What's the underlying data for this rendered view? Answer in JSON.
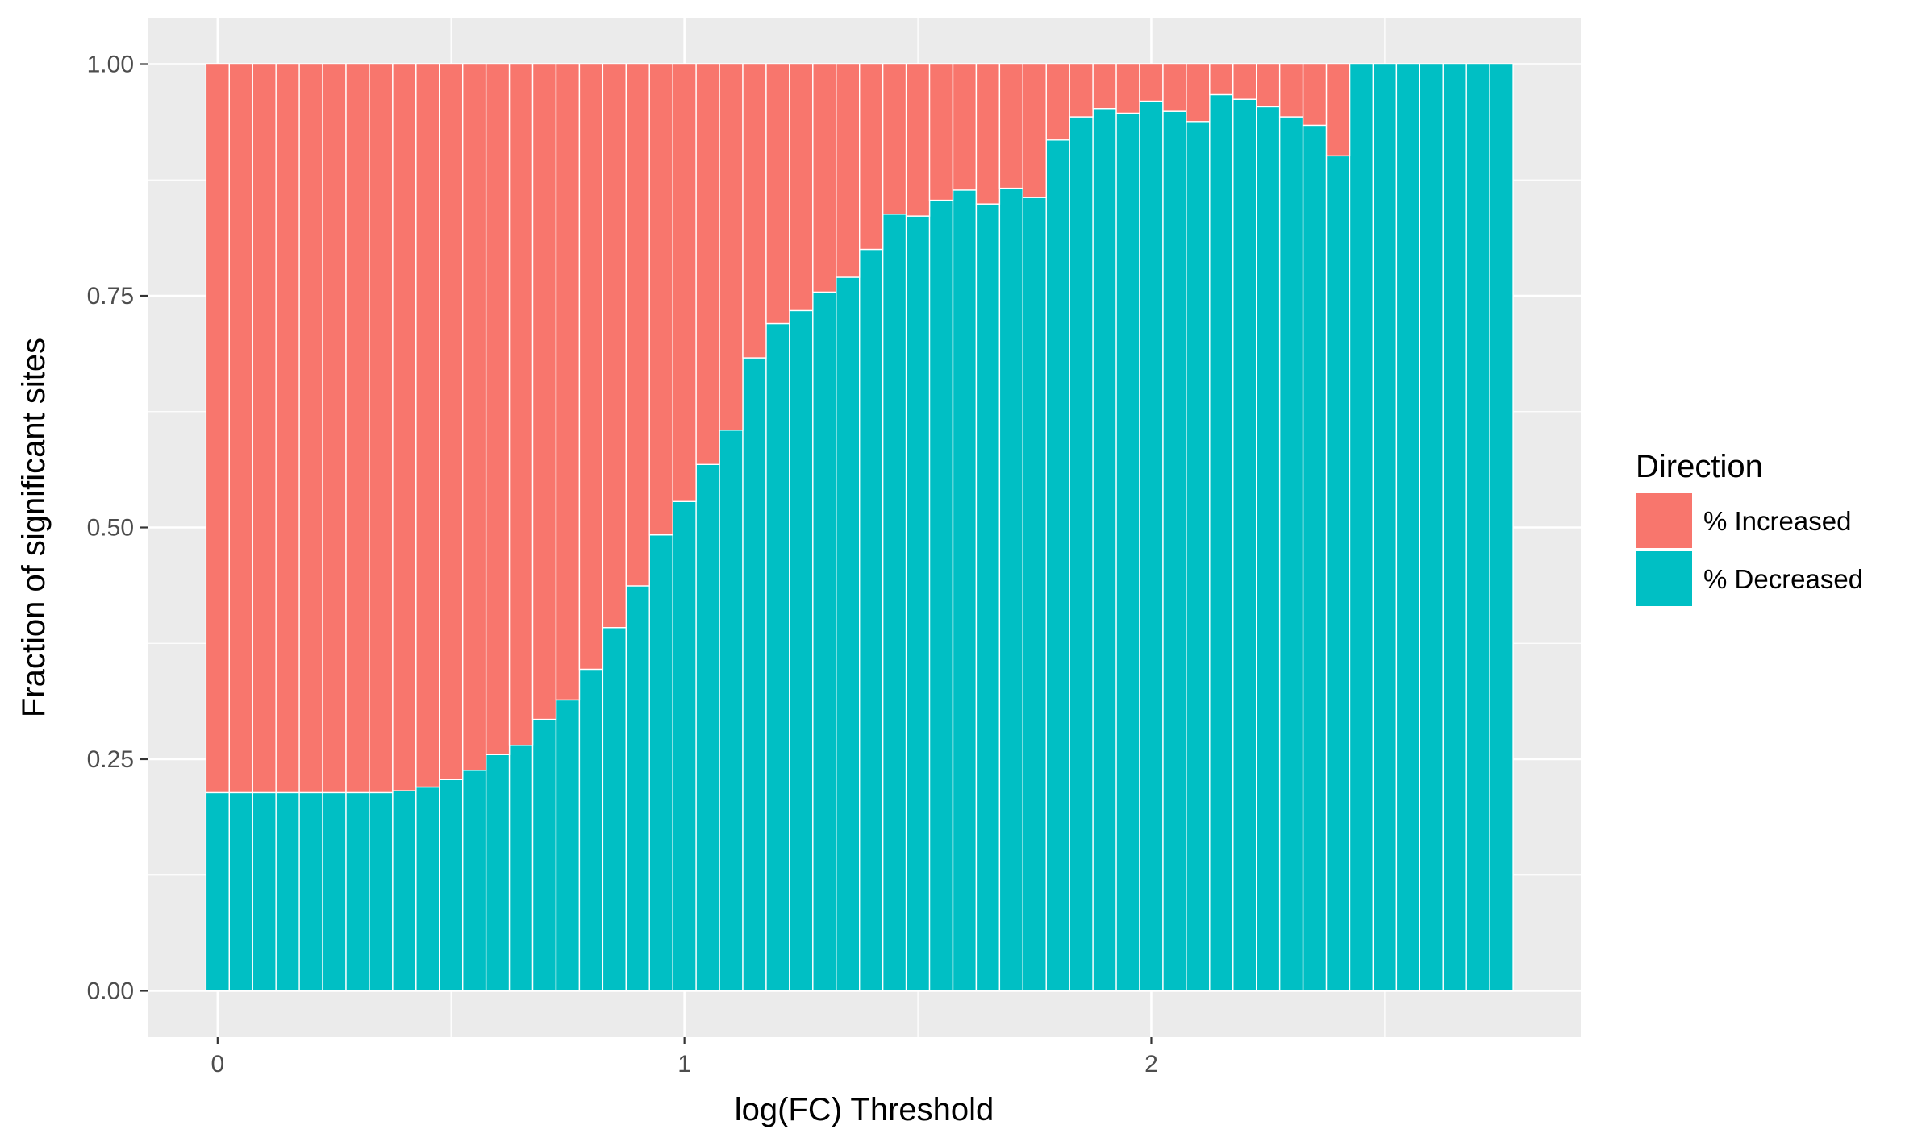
{
  "chart_data": {
    "type": "bar",
    "stacked": true,
    "xlabel": "log(FC) Threshold",
    "ylabel": "Fraction of significant sites",
    "xlim": [
      -0.15,
      2.92
    ],
    "ylim": [
      -0.05,
      1.05
    ],
    "xticks": [
      0,
      1,
      2
    ],
    "xtick_labels": [
      "0",
      "1",
      "2"
    ],
    "yticks": [
      0,
      0.25,
      0.5,
      0.75,
      1
    ],
    "ytick_labels": [
      "0.00",
      "0.25",
      "0.50",
      "0.75",
      "1.00"
    ],
    "bar_width": 0.05,
    "grid": true,
    "legend": {
      "title": "Direction",
      "position": "right",
      "entries": [
        "% Increased",
        "% Decreased"
      ]
    },
    "colors": {
      "% Increased": "#F8766D",
      "% Decreased": "#00BFC4",
      "panel": "#EBEBEB",
      "grid": "#FFFFFF",
      "tick": "#333333"
    },
    "x": [
      0.0,
      0.05,
      0.1,
      0.15,
      0.2,
      0.25,
      0.3,
      0.35,
      0.4,
      0.45,
      0.5,
      0.55,
      0.6,
      0.65,
      0.7,
      0.75,
      0.8,
      0.85,
      0.9,
      0.95,
      1.0,
      1.05,
      1.1,
      1.15,
      1.2,
      1.25,
      1.3,
      1.35,
      1.4,
      1.45,
      1.5,
      1.55,
      1.6,
      1.65,
      1.7,
      1.75,
      1.8,
      1.85,
      1.9,
      1.95,
      2.0,
      2.05,
      2.1,
      2.15,
      2.2,
      2.25,
      2.3,
      2.35,
      2.4,
      2.45,
      2.5,
      2.55,
      2.6,
      2.65,
      2.7,
      2.75
    ],
    "series": [
      {
        "name": "% Decreased",
        "values": [
          0.214,
          0.214,
          0.214,
          0.214,
          0.214,
          0.214,
          0.214,
          0.214,
          0.216,
          0.22,
          0.228,
          0.238,
          0.255,
          0.265,
          0.293,
          0.314,
          0.347,
          0.392,
          0.437,
          0.492,
          0.528,
          0.568,
          0.605,
          0.683,
          0.72,
          0.734,
          0.754,
          0.77,
          0.8,
          0.838,
          0.836,
          0.853,
          0.864,
          0.849,
          0.866,
          0.856,
          0.918,
          0.943,
          0.952,
          0.947,
          0.96,
          0.949,
          0.938,
          0.967,
          0.962,
          0.954,
          0.943,
          0.934,
          0.901,
          1.0,
          1.0,
          1.0,
          1.0,
          1.0,
          1.0,
          1.0
        ]
      },
      {
        "name": "% Increased",
        "values": [
          0.786,
          0.786,
          0.786,
          0.786,
          0.786,
          0.786,
          0.786,
          0.786,
          0.784,
          0.78,
          0.772,
          0.762,
          0.745,
          0.735,
          0.707,
          0.686,
          0.653,
          0.608,
          0.563,
          0.508,
          0.472,
          0.432,
          0.395,
          0.317,
          0.28,
          0.266,
          0.246,
          0.23,
          0.2,
          0.162,
          0.164,
          0.147,
          0.136,
          0.151,
          0.134,
          0.144,
          0.082,
          0.057,
          0.048,
          0.053,
          0.04,
          0.051,
          0.062,
          0.033,
          0.038,
          0.046,
          0.057,
          0.066,
          0.099,
          0.0,
          0.0,
          0.0,
          0.0,
          0.0,
          0.0,
          0.0
        ]
      }
    ]
  }
}
